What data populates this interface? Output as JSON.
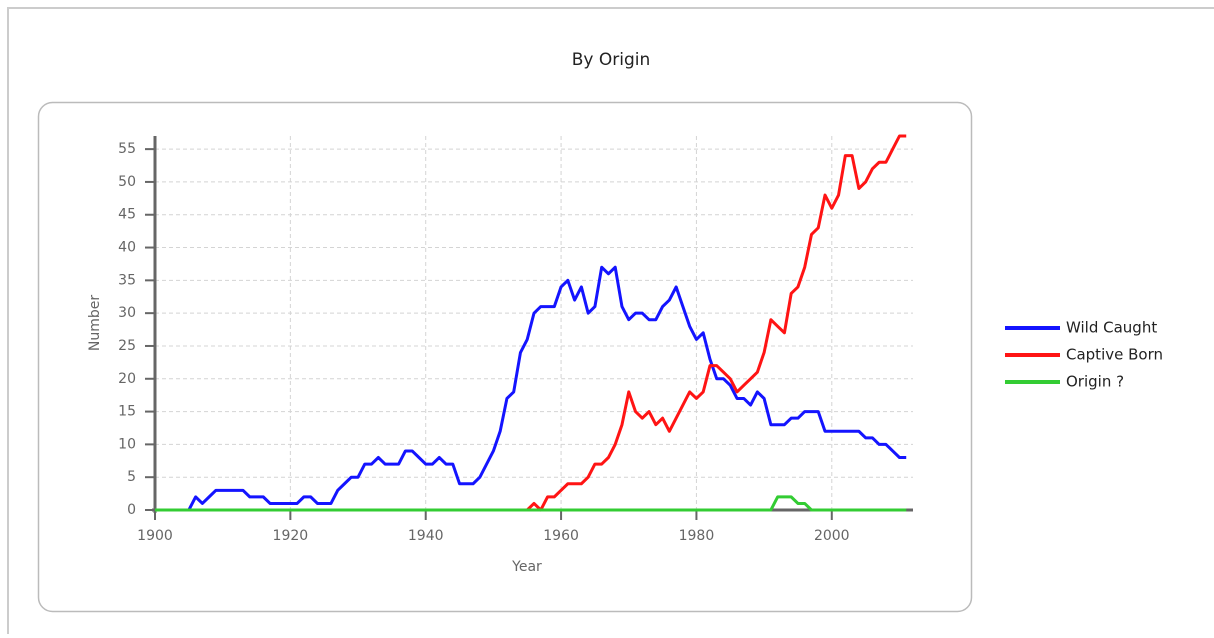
{
  "chart_data": {
    "type": "line",
    "title": "By Origin",
    "x_label": "Year",
    "y_label": "Number",
    "x": [
      1900,
      1901,
      1902,
      1903,
      1904,
      1905,
      1906,
      1907,
      1908,
      1909,
      1910,
      1911,
      1912,
      1913,
      1914,
      1915,
      1916,
      1917,
      1918,
      1919,
      1920,
      1921,
      1922,
      1923,
      1924,
      1925,
      1926,
      1927,
      1928,
      1929,
      1930,
      1931,
      1932,
      1933,
      1934,
      1935,
      1936,
      1937,
      1938,
      1939,
      1940,
      1941,
      1942,
      1943,
      1944,
      1945,
      1946,
      1947,
      1948,
      1949,
      1950,
      1951,
      1952,
      1953,
      1954,
      1955,
      1956,
      1957,
      1958,
      1959,
      1960,
      1961,
      1962,
      1963,
      1964,
      1965,
      1966,
      1967,
      1968,
      1969,
      1970,
      1971,
      1972,
      1973,
      1974,
      1975,
      1976,
      1977,
      1978,
      1979,
      1980,
      1981,
      1982,
      1983,
      1984,
      1985,
      1986,
      1987,
      1988,
      1989,
      1990,
      1991,
      1992,
      1993,
      1994,
      1995,
      1996,
      1997,
      1998,
      1999,
      2000,
      2001,
      2002,
      2003,
      2004,
      2005,
      2006,
      2007,
      2008,
      2009,
      2010,
      2011
    ],
    "series": [
      {
        "name": "Wild Caught",
        "color": "#1414ff",
        "values": [
          0,
          0,
          0,
          0,
          0,
          0,
          2,
          1,
          2,
          3,
          3,
          3,
          3,
          3,
          2,
          2,
          2,
          1,
          1,
          1,
          1,
          1,
          2,
          2,
          1,
          1,
          1,
          3,
          4,
          5,
          5,
          7,
          7,
          8,
          7,
          7,
          7,
          9,
          9,
          8,
          7,
          7,
          8,
          7,
          7,
          4,
          4,
          4,
          5,
          7,
          9,
          12,
          17,
          18,
          24,
          26,
          30,
          31,
          31,
          31,
          34,
          35,
          32,
          34,
          30,
          31,
          37,
          36,
          37,
          31,
          29,
          30,
          30,
          29,
          29,
          31,
          32,
          34,
          31,
          28,
          26,
          27,
          23,
          20,
          20,
          19,
          17,
          17,
          16,
          18,
          17,
          13,
          13,
          13,
          14,
          14,
          15,
          15,
          15,
          12,
          12,
          12,
          12,
          12,
          12,
          11,
          11,
          10,
          10,
          9,
          8,
          8
        ]
      },
      {
        "name": "Captive Born",
        "color": "#ff1414",
        "values": [
          0,
          0,
          0,
          0,
          0,
          0,
          0,
          0,
          0,
          0,
          0,
          0,
          0,
          0,
          0,
          0,
          0,
          0,
          0,
          0,
          0,
          0,
          0,
          0,
          0,
          0,
          0,
          0,
          0,
          0,
          0,
          0,
          0,
          0,
          0,
          0,
          0,
          0,
          0,
          0,
          0,
          0,
          0,
          0,
          0,
          0,
          0,
          0,
          0,
          0,
          0,
          0,
          0,
          0,
          0,
          0,
          1,
          0,
          2,
          2,
          3,
          4,
          4,
          4,
          5,
          7,
          7,
          8,
          10,
          13,
          18,
          15,
          14,
          15,
          13,
          14,
          12,
          14,
          16,
          18,
          17,
          18,
          22,
          22,
          21,
          20,
          18,
          19,
          20,
          21,
          24,
          29,
          28,
          27,
          33,
          34,
          37,
          42,
          43,
          48,
          46,
          48,
          54,
          54,
          49,
          50,
          52,
          53,
          53,
          55,
          57,
          57
        ]
      },
      {
        "name": "Origin ?",
        "color": "#33cc33",
        "values": [
          0,
          0,
          0,
          0,
          0,
          0,
          0,
          0,
          0,
          0,
          0,
          0,
          0,
          0,
          0,
          0,
          0,
          0,
          0,
          0,
          0,
          0,
          0,
          0,
          0,
          0,
          0,
          0,
          0,
          0,
          0,
          0,
          0,
          0,
          0,
          0,
          0,
          0,
          0,
          0,
          0,
          0,
          0,
          0,
          0,
          0,
          0,
          0,
          0,
          0,
          0,
          0,
          0,
          0,
          0,
          0,
          0,
          0,
          0,
          0,
          0,
          0,
          0,
          0,
          0,
          0,
          0,
          0,
          0,
          0,
          0,
          0,
          0,
          0,
          0,
          0,
          0,
          0,
          0,
          0,
          0,
          0,
          0,
          0,
          0,
          0,
          0,
          0,
          0,
          0,
          0,
          0,
          2,
          2,
          2,
          1,
          1,
          0,
          0,
          0,
          0,
          0,
          0,
          0,
          0,
          0,
          0,
          0,
          0,
          0,
          0,
          0
        ]
      }
    ],
    "xlim": [
      1900,
      2012
    ],
    "ylim": [
      0,
      57
    ],
    "xticks": [
      1900,
      1920,
      1940,
      1960,
      1980,
      2000
    ],
    "yticks": [
      0,
      5,
      10,
      15,
      20,
      25,
      30,
      35,
      40,
      45,
      50,
      55
    ],
    "grid": true,
    "legend": "right"
  }
}
